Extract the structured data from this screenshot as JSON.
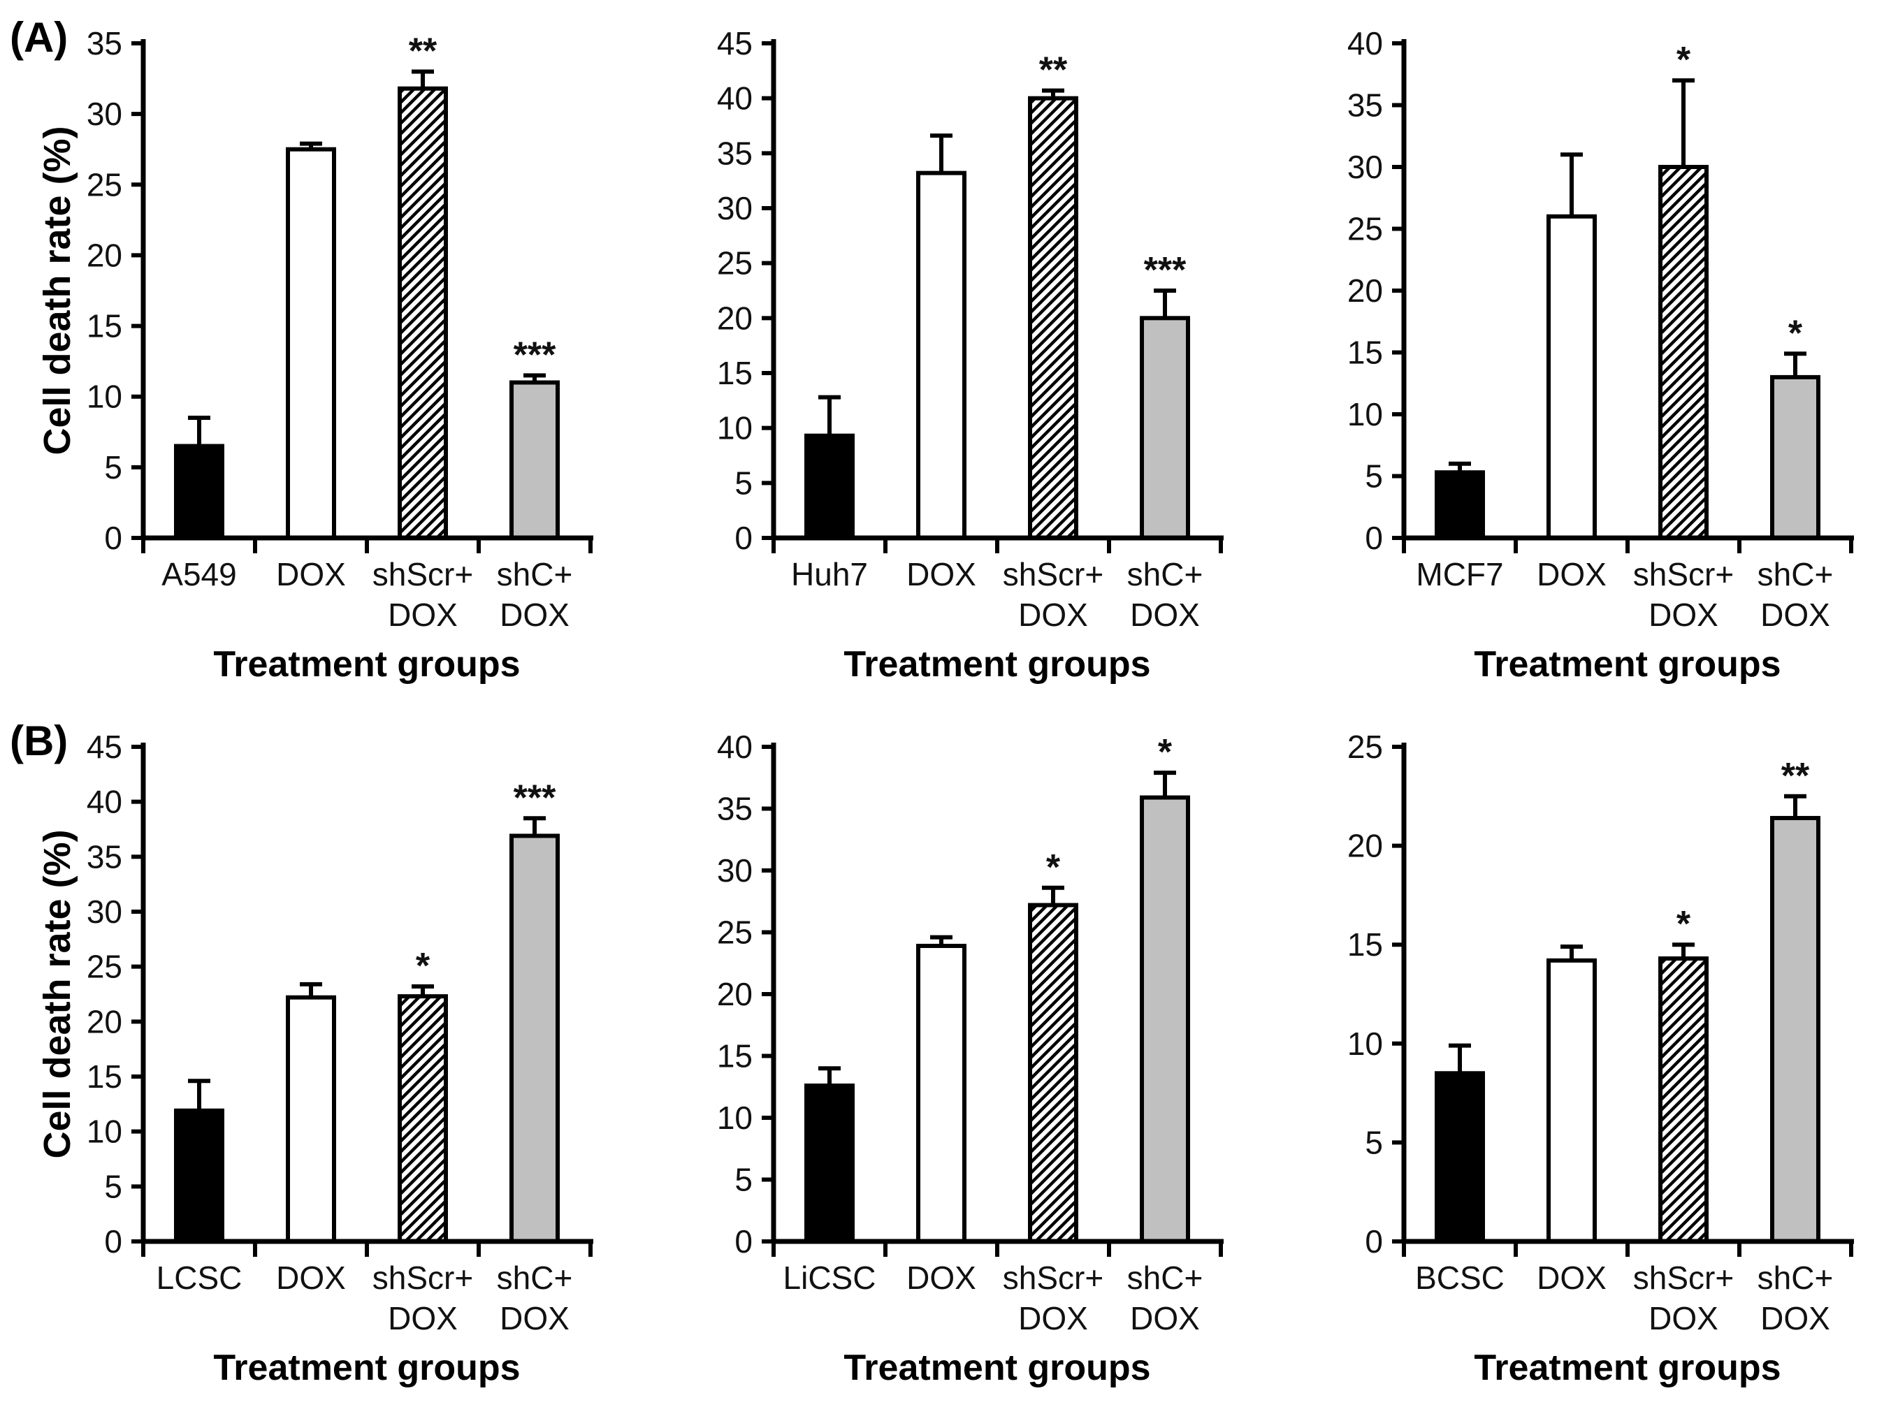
{
  "figure": {
    "panels": [
      {
        "label": "(A)"
      },
      {
        "label": "(B)"
      }
    ],
    "y_axis_label": "Cell death rate (%)",
    "x_axis_label": "Treatment groups"
  },
  "style": {
    "gray_color": "#c0c0c0",
    "bar_border_color": "#000000",
    "axis_color": "#000000",
    "text_color": "#111111",
    "background": "#ffffff"
  },
  "chart_data": [
    {
      "type": "bar",
      "panel_label": "(A)",
      "show_ylabel": true,
      "ylabel": "Cell death rate (%)",
      "xlabel": "Treatment groups",
      "cell_line": "A549",
      "categories": [
        [
          "A549"
        ],
        [
          "DOX"
        ],
        [
          "shScr+",
          "DOX"
        ],
        [
          "shC+",
          "DOX"
        ]
      ],
      "values": [
        6.5,
        27.5,
        31.8,
        11.0
      ],
      "errors": [
        2.0,
        0.4,
        1.2,
        0.5
      ],
      "significance": [
        "",
        "",
        "**",
        "***"
      ],
      "bar_styles": [
        "black",
        "white",
        "hatched",
        "gray"
      ],
      "ylim": [
        0,
        35
      ],
      "ytick_step": 5,
      "grid": false
    },
    {
      "type": "bar",
      "panel_label": "",
      "show_ylabel": false,
      "ylabel": "",
      "xlabel": "Treatment groups",
      "cell_line": "Huh7",
      "categories": [
        [
          "Huh7"
        ],
        [
          "DOX"
        ],
        [
          "shScr+",
          "DOX"
        ],
        [
          "shC+",
          "DOX"
        ]
      ],
      "values": [
        9.3,
        33.2,
        40.0,
        20.0
      ],
      "errors": [
        3.5,
        3.4,
        0.7,
        2.5
      ],
      "significance": [
        "",
        "",
        "**",
        "***"
      ],
      "bar_styles": [
        "black",
        "white",
        "hatched",
        "gray"
      ],
      "ylim": [
        0,
        45
      ],
      "ytick_step": 5,
      "grid": false
    },
    {
      "type": "bar",
      "panel_label": "",
      "show_ylabel": false,
      "ylabel": "",
      "xlabel": "Treatment groups",
      "cell_line": "MCF7",
      "categories": [
        [
          "MCF7"
        ],
        [
          "DOX"
        ],
        [
          "shScr+",
          "DOX"
        ],
        [
          "shC+",
          "DOX"
        ]
      ],
      "values": [
        5.3,
        26.0,
        30.0,
        13.0
      ],
      "errors": [
        0.7,
        5.0,
        7.0,
        1.9
      ],
      "significance": [
        "",
        "",
        "*",
        "*"
      ],
      "bar_styles": [
        "black",
        "white",
        "hatched",
        "gray"
      ],
      "ylim": [
        0,
        40
      ],
      "ytick_step": 5,
      "grid": false
    },
    {
      "type": "bar",
      "panel_label": "(B)",
      "show_ylabel": true,
      "ylabel": "Cell death rate (%)",
      "xlabel": "Treatment groups",
      "cell_line": "LCSC",
      "categories": [
        [
          "LCSC"
        ],
        [
          "DOX"
        ],
        [
          "shScr+",
          "DOX"
        ],
        [
          "shC+",
          "DOX"
        ]
      ],
      "values": [
        11.9,
        22.2,
        22.3,
        36.9
      ],
      "errors": [
        2.7,
        1.2,
        0.9,
        1.6
      ],
      "significance": [
        "",
        "",
        "*",
        "***"
      ],
      "bar_styles": [
        "black",
        "white",
        "hatched",
        "gray"
      ],
      "ylim": [
        0,
        45
      ],
      "ytick_step": 5,
      "grid": false
    },
    {
      "type": "bar",
      "panel_label": "",
      "show_ylabel": false,
      "ylabel": "",
      "xlabel": "Treatment groups",
      "cell_line": "LiCSC",
      "categories": [
        [
          "LiCSC"
        ],
        [
          "DOX"
        ],
        [
          "shScr+",
          "DOX"
        ],
        [
          "shC+",
          "DOX"
        ]
      ],
      "values": [
        12.6,
        23.9,
        27.2,
        35.9
      ],
      "errors": [
        1.4,
        0.7,
        1.4,
        2.0
      ],
      "significance": [
        "",
        "",
        "*",
        "*"
      ],
      "bar_styles": [
        "black",
        "white",
        "hatched",
        "gray"
      ],
      "ylim": [
        0,
        40
      ],
      "ytick_step": 5,
      "grid": false
    },
    {
      "type": "bar",
      "panel_label": "",
      "show_ylabel": false,
      "ylabel": "",
      "xlabel": "Treatment groups",
      "cell_line": "BCSC",
      "categories": [
        [
          "BCSC"
        ],
        [
          "DOX"
        ],
        [
          "shScr+",
          "DOX"
        ],
        [
          "shC+",
          "DOX"
        ]
      ],
      "values": [
        8.5,
        14.2,
        14.3,
        21.4
      ],
      "errors": [
        1.4,
        0.7,
        0.7,
        1.1
      ],
      "significance": [
        "",
        "",
        "*",
        "**"
      ],
      "bar_styles": [
        "black",
        "white",
        "hatched",
        "gray"
      ],
      "ylim": [
        0,
        25
      ],
      "ytick_step": 5,
      "grid": false
    }
  ]
}
